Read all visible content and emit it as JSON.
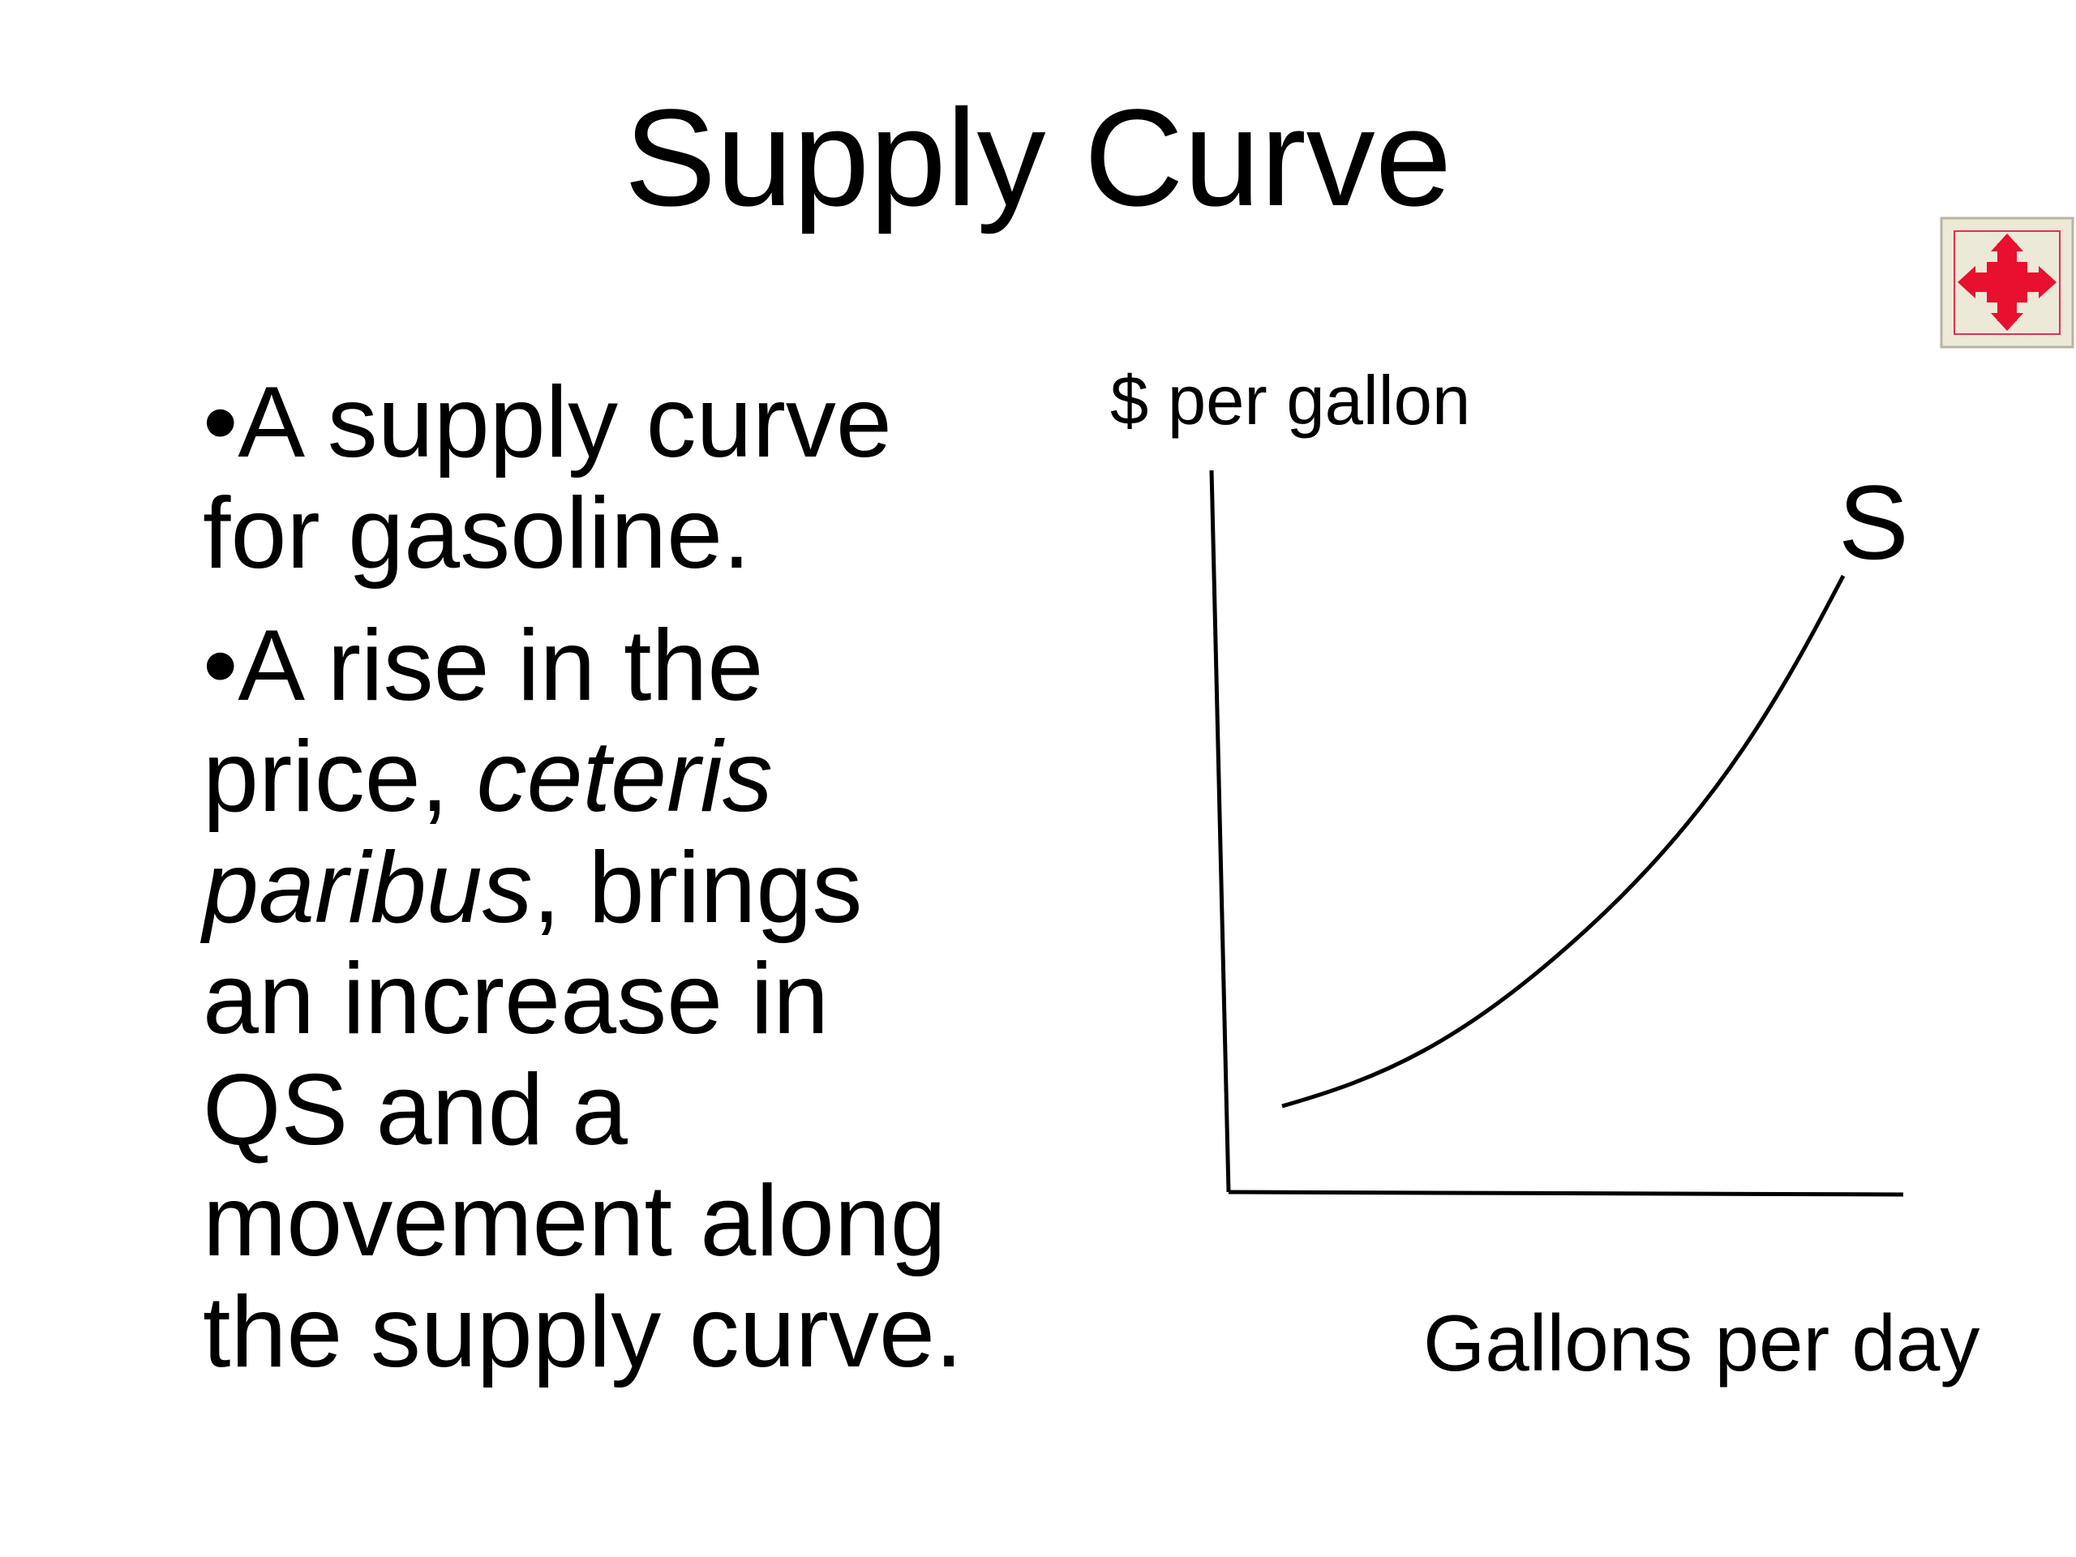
{
  "header": {
    "title": "Supply Curve"
  },
  "bullets": [
    {
      "text": "A supply curve for gasoline."
    },
    {
      "before": "A rise in the price, ",
      "emphasis": "ceteris paribus",
      "after": ", brings an increase in QS and a movement along the supply curve."
    }
  ],
  "diagram": {
    "y_label": "$ per gallon",
    "x_label": "Gallons per day",
    "curve_label": "S"
  }
}
